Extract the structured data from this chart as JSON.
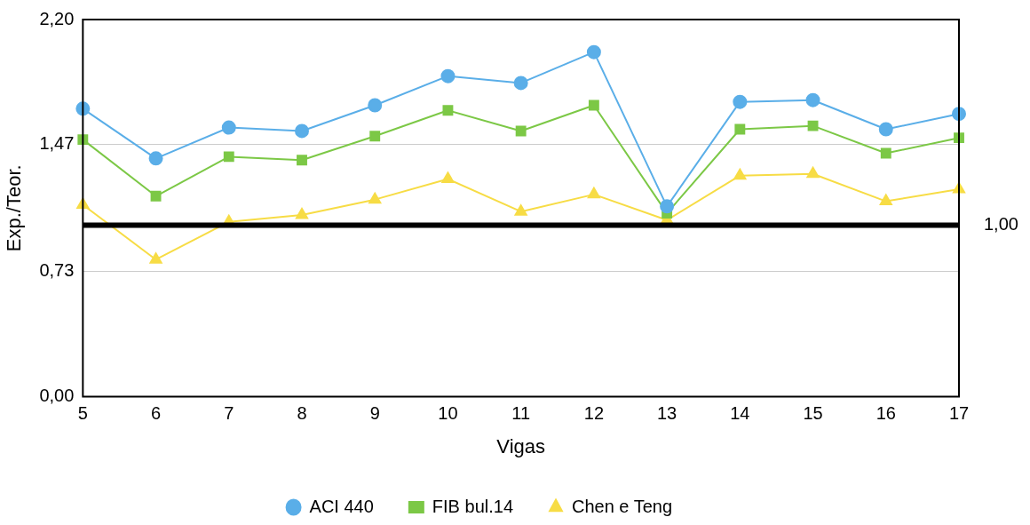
{
  "chart_data": {
    "type": "line",
    "xlabel": "Vigas",
    "ylabel": "Exp./Teor.",
    "categories": [
      "5",
      "6",
      "7",
      "8",
      "9",
      "10",
      "11",
      "12",
      "13",
      "14",
      "15",
      "16",
      "17"
    ],
    "series": [
      {
        "name": "ACI 440",
        "color": "#5aaee8",
        "marker": "circle",
        "values": [
          1.68,
          1.39,
          1.57,
          1.55,
          1.7,
          1.87,
          1.83,
          2.01,
          1.11,
          1.72,
          1.73,
          1.56,
          1.65
        ]
      },
      {
        "name": "FIB bul.14",
        "color": "#7cc846",
        "marker": "square",
        "values": [
          1.5,
          1.17,
          1.4,
          1.38,
          1.52,
          1.67,
          1.55,
          1.7,
          1.07,
          1.56,
          1.58,
          1.42,
          1.51
        ]
      },
      {
        "name": "Chen e Teng",
        "color": "#f7dc45",
        "marker": "triangle",
        "values": [
          1.12,
          0.8,
          1.02,
          1.06,
          1.15,
          1.27,
          1.08,
          1.18,
          1.03,
          1.29,
          1.3,
          1.14,
          1.21
        ]
      }
    ],
    "ylim": [
      0,
      2.2
    ],
    "yticks": [
      {
        "value": 0,
        "label": "0,00"
      },
      {
        "value": 0.73,
        "label": "0,73"
      },
      {
        "value": 1.47,
        "label": "1,47"
      },
      {
        "value": 2.2,
        "label": "2,20"
      }
    ],
    "ref_lines": [
      {
        "axis": "y",
        "value": 1,
        "label": "1,00",
        "color": "#000000"
      }
    ],
    "grid": "y",
    "legend": "bottom"
  }
}
